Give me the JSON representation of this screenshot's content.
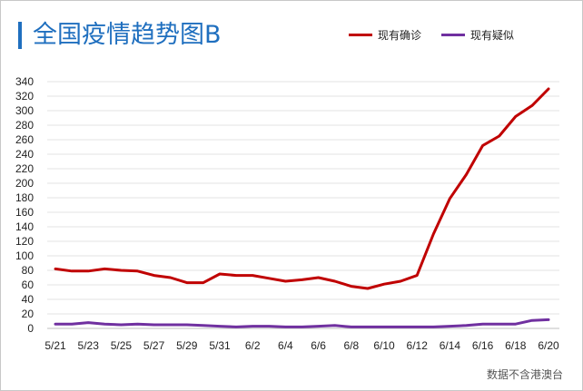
{
  "chart_data": {
    "type": "line",
    "title": "全国疫情趋势图B",
    "source": "数据不含港澳台",
    "ylim": [
      0,
      340
    ],
    "yticks": [
      0,
      20,
      40,
      60,
      80,
      100,
      120,
      140,
      160,
      180,
      200,
      220,
      240,
      260,
      280,
      300,
      320,
      340
    ],
    "categories": [
      "5/21",
      "5/22",
      "5/23",
      "5/24",
      "5/25",
      "5/26",
      "5/27",
      "5/28",
      "5/29",
      "5/30",
      "5/31",
      "6/1",
      "6/2",
      "6/3",
      "6/4",
      "6/5",
      "6/6",
      "6/7",
      "6/8",
      "6/9",
      "6/10",
      "6/11",
      "6/12",
      "6/13",
      "6/14",
      "6/15",
      "6/16",
      "6/17",
      "6/18",
      "6/19",
      "6/20"
    ],
    "xtick_labels": [
      "5/21",
      "5/23",
      "5/25",
      "5/27",
      "5/29",
      "5/31",
      "6/2",
      "6/4",
      "6/6",
      "6/8",
      "6/10",
      "6/12",
      "6/14",
      "6/16",
      "6/18",
      "6/20"
    ],
    "series": [
      {
        "name": "现有确诊",
        "color": "#c00000",
        "values": [
          82,
          79,
          79,
          82,
          80,
          79,
          73,
          70,
          63,
          63,
          75,
          73,
          73,
          69,
          65,
          67,
          70,
          65,
          58,
          55,
          61,
          65,
          73,
          130,
          179,
          212,
          252,
          265,
          292,
          307,
          330
        ]
      },
      {
        "name": "现有疑似",
        "color": "#7030a0",
        "values": [
          6,
          6,
          8,
          6,
          5,
          6,
          5,
          5,
          5,
          4,
          3,
          2,
          3,
          3,
          2,
          2,
          3,
          4,
          2,
          2,
          2,
          2,
          2,
          2,
          3,
          4,
          6,
          6,
          6,
          11,
          12
        ]
      }
    ],
    "grid": true,
    "legend_position": "top-right"
  }
}
